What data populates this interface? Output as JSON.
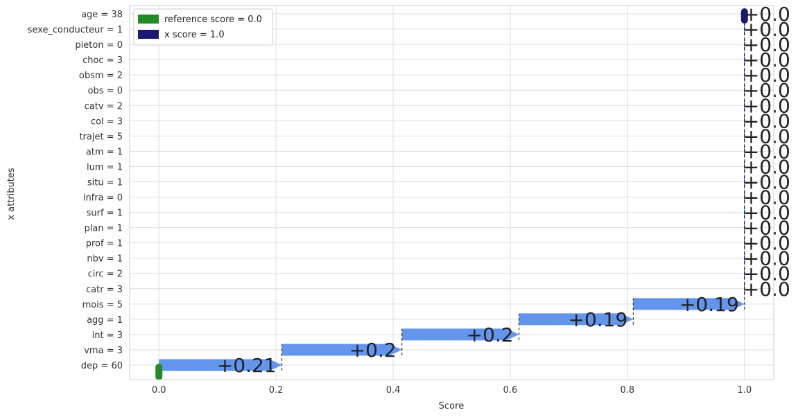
{
  "chart_data": {
    "type": "waterfall",
    "xlabel": "Score",
    "ylabel": "x attributes",
    "xlim": [
      -0.05,
      1.05
    ],
    "xticks": [
      "0.0",
      "0.2",
      "0.4",
      "0.6",
      "0.8",
      "1.0"
    ],
    "grid": true,
    "legend_position": "top-left",
    "legend": [
      {
        "label": "reference score = 0.0",
        "color": "#228b22"
      },
      {
        "label": "x score = 1.0",
        "color": "#191970"
      }
    ],
    "reference_score": 0.0,
    "x_score": 1.0,
    "bar_color": "#6495ed",
    "contributions": [
      {
        "feature": "dep = 60",
        "value": 0.21,
        "label": "+0.21"
      },
      {
        "feature": "vma = 3",
        "value": 0.205,
        "label": "+0.2"
      },
      {
        "feature": "int = 3",
        "value": 0.2,
        "label": "+0.2"
      },
      {
        "feature": "agg = 1",
        "value": 0.195,
        "label": "+0.19"
      },
      {
        "feature": "mois = 5",
        "value": 0.19,
        "label": "+0.19"
      },
      {
        "feature": "catr = 3",
        "value": 0.0,
        "label": "+0.0"
      },
      {
        "feature": "circ = 2",
        "value": 0.0,
        "label": "+0.0"
      },
      {
        "feature": "nbv = 1",
        "value": 0.0,
        "label": "+0.0"
      },
      {
        "feature": "prof = 1",
        "value": 0.0,
        "label": "+0.0"
      },
      {
        "feature": "plan = 1",
        "value": 0.0,
        "label": "+0.0"
      },
      {
        "feature": "surf = 1",
        "value": 0.0,
        "label": "+0.0"
      },
      {
        "feature": "infra = 0",
        "value": 0.0,
        "label": "+0.0"
      },
      {
        "feature": "situ = 1",
        "value": 0.0,
        "label": "+0.0"
      },
      {
        "feature": "lum = 1",
        "value": 0.0,
        "label": "+0.0"
      },
      {
        "feature": "atm = 1",
        "value": 0.0,
        "label": "+0.0"
      },
      {
        "feature": "trajet = 5",
        "value": 0.0,
        "label": "+0.0"
      },
      {
        "feature": "col = 3",
        "value": 0.0,
        "label": "+0.0"
      },
      {
        "feature": "catv = 2",
        "value": 0.0,
        "label": "+0.0"
      },
      {
        "feature": "obs = 0",
        "value": 0.0,
        "label": "+0.0"
      },
      {
        "feature": "obsm = 2",
        "value": 0.0,
        "label": "+0.0"
      },
      {
        "feature": "choc = 3",
        "value": 0.0,
        "label": "+0.0"
      },
      {
        "feature": "pieton = 0",
        "value": 0.0,
        "label": "+0.0"
      },
      {
        "feature": "sexe_conducteur = 1",
        "value": 0.0,
        "label": "+0.0"
      },
      {
        "feature": "age = 38",
        "value": 0.0,
        "label": "+0.0"
      }
    ]
  }
}
